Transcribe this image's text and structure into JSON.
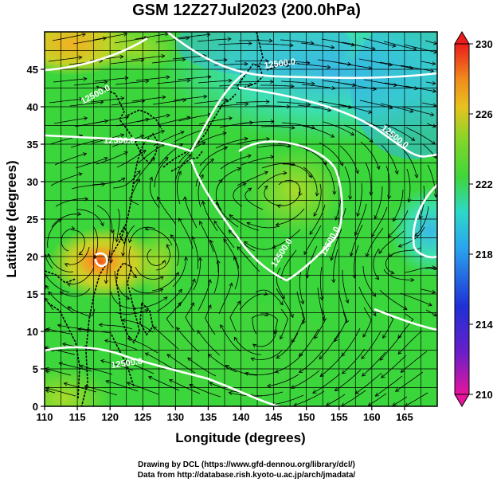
{
  "title": "GSM 12Z27Jul2023 (200.0hPa)",
  "axes": {
    "x_label": "Longitude (degrees)",
    "y_label": "Latitude  (degrees)",
    "x_ticks": [
      "110",
      "115",
      "120",
      "125",
      "130",
      "135",
      "140",
      "145",
      "150",
      "155",
      "160",
      "165"
    ],
    "y_ticks": [
      "0",
      "5",
      "10",
      "15",
      "20",
      "25",
      "30",
      "35",
      "40",
      "45"
    ]
  },
  "colorbar": {
    "labels": [
      "210",
      "214",
      "218",
      "222",
      "226",
      "230"
    ],
    "colors": [
      "#e6159c",
      "#1f2fd6",
      "#2cc8ee",
      "#3fd63a",
      "#f0a21c",
      "#ec1c1c"
    ]
  },
  "contours": {
    "label": "12500.0"
  },
  "credits": {
    "line1": "Drawing by DCL (https://www.gfd-dennou.org/library/dcl/)",
    "line2": "Data from http://database.rish.kyoto-u.ac.jp/arch/jmadata/"
  },
  "chart_data": {
    "type": "heatmap",
    "title": "GSM 12Z27Jul2023 (200.0hPa)",
    "xlabel": "Longitude (degrees)",
    "ylabel": "Latitude  (degrees)",
    "xlim": [
      110,
      170
    ],
    "ylim": [
      0,
      50
    ],
    "colorbar_range": [
      210,
      230
    ],
    "colorbar_ticks": [
      210,
      214,
      218,
      222,
      226,
      230
    ],
    "contour_level": 12500.0,
    "contour_labels_count": 7,
    "overlays": [
      "streamlines",
      "coastlines",
      "lat-lon grid",
      "geopotential height contours"
    ],
    "grid": true
  }
}
